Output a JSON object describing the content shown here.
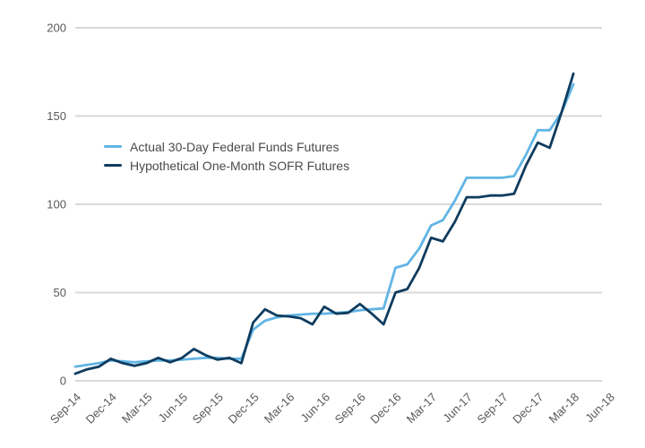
{
  "chart_data": {
    "type": "line",
    "title": "",
    "xlabel": "",
    "ylabel": "",
    "ylim": [
      0,
      200
    ],
    "y_ticks": [
      0,
      50,
      100,
      150,
      200
    ],
    "grid": "horizontal",
    "legend_position": "inside-upper-left",
    "x_tick_labels": [
      "Sep-14",
      "Dec-14",
      "Mar-15",
      "Jun-15",
      "Sep-15",
      "Dec-15",
      "Mar-16",
      "Jun-16",
      "Sep-16",
      "Dec-16",
      "Mar-17",
      "Jun-17",
      "Sep-17",
      "Dec-17",
      "Mar-18",
      "Jun-18"
    ],
    "x": [
      "Sep-14",
      "Oct-14",
      "Nov-14",
      "Dec-14",
      "Jan-15",
      "Feb-15",
      "Mar-15",
      "Apr-15",
      "May-15",
      "Jun-15",
      "Jul-15",
      "Aug-15",
      "Sep-15",
      "Oct-15",
      "Nov-15",
      "Dec-15",
      "Jan-16",
      "Feb-16",
      "Mar-16",
      "Apr-16",
      "May-16",
      "Jun-16",
      "Jul-16",
      "Aug-16",
      "Sep-16",
      "Oct-16",
      "Nov-16",
      "Dec-16",
      "Jan-17",
      "Feb-17",
      "Mar-17",
      "Apr-17",
      "May-17",
      "Jun-17",
      "Jul-17",
      "Aug-17",
      "Sep-17",
      "Oct-17",
      "Nov-17",
      "Dec-17",
      "Jan-18",
      "Feb-18",
      "Mar-18"
    ],
    "series": [
      {
        "name": "Actual 30-Day Federal Funds Futures",
        "color": "#62b5e5",
        "values": [
          8,
          9,
          10,
          11.5,
          11,
          10.5,
          11,
          11.5,
          11.5,
          12,
          12.5,
          13,
          13,
          12.5,
          12.5,
          29,
          34,
          36,
          37,
          37.5,
          38,
          38,
          38.5,
          39,
          40,
          40.5,
          41,
          64,
          66,
          75,
          88,
          91,
          102,
          115,
          115,
          115,
          115,
          116,
          128,
          142,
          142,
          152,
          168
        ]
      },
      {
        "name": "Hypothetical One-Month SOFR Futures",
        "color": "#0f3c5f",
        "values": [
          4,
          6.5,
          8,
          12.5,
          10,
          8.5,
          10,
          13,
          10.5,
          13,
          18,
          14.5,
          12,
          13,
          10,
          33,
          40.5,
          37,
          36.5,
          35.5,
          32,
          42,
          38,
          38.5,
          43.5,
          38,
          32,
          50,
          52,
          64,
          81,
          79,
          90,
          104,
          104,
          105,
          105,
          106,
          122,
          135,
          132,
          152,
          174
        ]
      }
    ],
    "colors": {
      "grid": "#d9d9d9",
      "axis_text": "#595959",
      "legend_text": "#4a4a4a",
      "background": "#ffffff"
    }
  }
}
